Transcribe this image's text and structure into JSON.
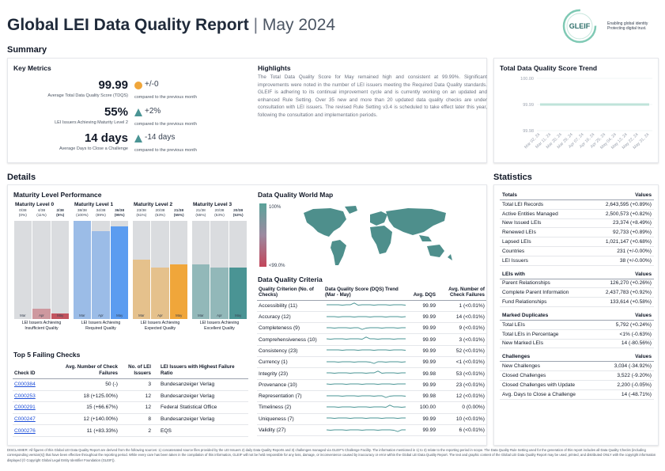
{
  "header": {
    "title": "Global LEI Data Quality Report",
    "separator": "|",
    "date": "May 2024",
    "logo_text": "GLEIF",
    "tagline_1": "Enabling global identity",
    "tagline_2": "Protecting digital trust."
  },
  "summary": {
    "title": "Summary",
    "key_metrics": {
      "title": "Key Metrics",
      "items": [
        {
          "value": "99.99",
          "label": "Average Total Data Quality Score (TDQS)",
          "change": "+/-0",
          "compare": "compared to the previous month",
          "icon": "circle-icon"
        },
        {
          "value": "55%",
          "label": "LEI Issuers Achieving Maturity Level 2",
          "change": "+2%",
          "compare": "compared to the previous month",
          "icon": "triangle-up-icon"
        },
        {
          "value": "14 days",
          "label": "Average Days to Close a Challenge",
          "change": "-14 days",
          "compare": "compared to the previous month",
          "icon": "triangle-up-icon"
        }
      ]
    },
    "highlights": {
      "title": "Highlights",
      "text": "The Total Data Quality Score for May remained high and consistent at 99.99%. Significant improvements were noted in the number of LEI issuers meeting the Required Data Quality standards. GLEIF is adhering to its continual improvement cycle and is currently working on an updated and enhanced Rule Setting. Over 35 new and more than 20 updated data quality checks are under consultation with LEI issuers. The revised Rule Setting v3.4 is scheduled to take effect later this year, following the consultation and implementation periods."
    },
    "trend": {
      "title": "Total Data Quality Score Trend"
    }
  },
  "chart_data": {
    "type": "line",
    "title": "Total Data Quality Score Trend",
    "x": [
      "Mar 02, 24",
      "Mar 11, 24",
      "Mar 20, 24",
      "Mar 29, 24",
      "Apr 07, 24",
      "Apr 16, 24",
      "Apr 25, 24",
      "May 04, 24",
      "May 13, 24",
      "May 22, 24",
      "May 31, 24"
    ],
    "series": [
      {
        "values": [
          99.99,
          99.99,
          99.99,
          99.99,
          99.99,
          99.99,
          99.99,
          99.99,
          99.99,
          99.99,
          99.99
        ]
      }
    ],
    "yticks": [
      "100.00",
      "99.99",
      "99.98"
    ],
    "ylim": [
      99.98,
      100.0
    ],
    "grid": true,
    "color": "#bfe3da"
  },
  "details": {
    "title": "Details",
    "maturity": {
      "title": "Maturity Level Performance",
      "levels": [
        {
          "title": "Maturity Level 0",
          "caption_1": "LEI Issuers Achieving",
          "caption_2": "Insufficient Quality",
          "color": "#c2545f",
          "columns": [
            {
              "count": "0/38",
              "pct": "(0%)",
              "month": "Mar",
              "value": 0,
              "bold": false
            },
            {
              "count": "4/38",
              "pct": "(11%)",
              "month": "Apr",
              "value": 0.105,
              "bold": false
            },
            {
              "count": "2/38",
              "pct": "(5%)",
              "month": "May",
              "value": 0.053,
              "bold": true
            }
          ]
        },
        {
          "title": "Maturity Level 1",
          "caption_1": "LEI Issuers Achieving",
          "caption_2": "Required Quality",
          "color": "#5b9cf0",
          "columns": [
            {
              "count": "38/38",
              "pct": "(100%)",
              "month": "Mar",
              "value": 1.0,
              "bold": false
            },
            {
              "count": "34/38",
              "pct": "(89%)",
              "month": "Apr",
              "value": 0.895,
              "bold": false
            },
            {
              "count": "36/38",
              "pct": "(95%)",
              "month": "May",
              "value": 0.947,
              "bold": true
            }
          ]
        },
        {
          "title": "Maturity Level 2",
          "caption_1": "LEI Issuers Achieving",
          "caption_2": "Expected Quality",
          "color": "#f0a63a",
          "columns": [
            {
              "count": "23/38",
              "pct": "(61%)",
              "month": "Mar",
              "value": 0.605,
              "bold": false
            },
            {
              "count": "20/38",
              "pct": "(53%)",
              "month": "Apr",
              "value": 0.526,
              "bold": false
            },
            {
              "count": "21/38",
              "pct": "(55%)",
              "month": "May",
              "value": 0.553,
              "bold": true
            }
          ]
        },
        {
          "title": "Maturity Level 3",
          "caption_1": "LEI Issuers Achieving",
          "caption_2": "Excellent Quality",
          "color": "#4a9494",
          "columns": [
            {
              "count": "21/38",
              "pct": "(55%)",
              "month": "Mar",
              "value": 0.553,
              "bold": false
            },
            {
              "count": "20/38",
              "pct": "(53%)",
              "month": "Apr",
              "value": 0.526,
              "bold": false
            },
            {
              "count": "20/38",
              "pct": "(53%)",
              "month": "May",
              "value": 0.526,
              "bold": true
            }
          ]
        }
      ]
    },
    "top5": {
      "title": "Top 5 Failing Checks",
      "headers": [
        "Check ID",
        "Avg. Number of Check Failures",
        "No. of LEI Issuers",
        "LEI Issuers with Highest Failure Ratio"
      ],
      "rows": [
        {
          "id": "C000384",
          "avg": "50 (-)",
          "issuers": "3",
          "highest": "Bundesanzeiger Verlag"
        },
        {
          "id": "C000253",
          "avg": "18 (+125.00%)",
          "issuers": "12",
          "highest": "Bundesanzeiger Verlag"
        },
        {
          "id": "C000291",
          "avg": "15 (+66.67%)",
          "issuers": "12",
          "highest": "Federal Statistical Office"
        },
        {
          "id": "C000247",
          "avg": "12 (+140.00%)",
          "issuers": "8",
          "highest": "Bundesanzeiger Verlag"
        },
        {
          "id": "C000276",
          "avg": "11 (+83.33%)",
          "issuers": "2",
          "highest": "EQS"
        }
      ]
    },
    "map": {
      "title": "Data Quality World Map",
      "legend_top": "100%",
      "legend_bottom": "<99.0%"
    },
    "criteria": {
      "title": "Data Quality Criteria",
      "headers": [
        "Quality Criterion (No. of Checks)",
        "Data Quality Score (DQS) Trend (Mar - May)",
        "Avg. DQS",
        "Avg. Number of Check Failures"
      ],
      "rows": [
        {
          "name": "Accessibility (11)",
          "dqs": "99.99",
          "fail": "1 (<0.01%)"
        },
        {
          "name": "Accuracy (12)",
          "dqs": "99.99",
          "fail": "14 (<0.01%)"
        },
        {
          "name": "Completeness (9)",
          "dqs": "99.99",
          "fail": "9 (<0.01%)"
        },
        {
          "name": "Comprehensiveness (10)",
          "dqs": "99.99",
          "fail": "3 (<0.01%)"
        },
        {
          "name": "Consistency (23)",
          "dqs": "99.99",
          "fail": "52 (<0.01%)"
        },
        {
          "name": "Currency (1)",
          "dqs": "99.99",
          "fail": "<1 (<0.01%)"
        },
        {
          "name": "Integrity (23)",
          "dqs": "99.98",
          "fail": "53 (<0.01%)"
        },
        {
          "name": "Provenance (10)",
          "dqs": "99.99",
          "fail": "23 (<0.01%)"
        },
        {
          "name": "Representation (7)",
          "dqs": "99.98",
          "fail": "12 (<0.01%)"
        },
        {
          "name": "Timeliness (2)",
          "dqs": "100.00",
          "fail": "0 (0.00%)"
        },
        {
          "name": "Uniqueness (7)",
          "dqs": "99.99",
          "fail": "10 (<0.01%)"
        },
        {
          "name": "Validity (27)",
          "dqs": "99.99",
          "fail": "6 (<0.01%)"
        }
      ]
    }
  },
  "statistics": {
    "title": "Statistics",
    "groups": [
      {
        "header": "Totals",
        "values_header": "Values",
        "rows": [
          {
            "label": "Total LEI Records",
            "value": "2,643,595 (+0.89%)"
          },
          {
            "label": "Active Entities Managed",
            "value": "2,500,573 (+0.82%)"
          },
          {
            "label": "New Issued LEIs",
            "value": "23,374 (+8.49%)"
          },
          {
            "label": "Renewed LEIs",
            "value": "92,733 (+0.89%)"
          },
          {
            "label": "Lapsed LEIs",
            "value": "1,021,147 (+0.68%)"
          },
          {
            "label": "Countries",
            "value": "231 (+/-0.00%)"
          },
          {
            "label": "LEI Issuers",
            "value": "38 (+/-0.00%)"
          }
        ]
      },
      {
        "header": "LEIs with",
        "values_header": "Values",
        "rows": [
          {
            "label": "Parent Relationships",
            "value": "126,270 (+0.26%)"
          },
          {
            "label": "Complete Parent Information",
            "value": "2,437,783 (+0.92%)"
          },
          {
            "label": "Fund Relationships",
            "value": "133,614 (+0.58%)"
          }
        ]
      },
      {
        "header": "Marked Duplicates",
        "values_header": "Values",
        "rows": [
          {
            "label": "Total LEIs",
            "value": "5,792 (+0.24%)"
          },
          {
            "label": "Total LEIs in Percentage",
            "value": "<1% (-0.63%)"
          },
          {
            "label": "New Marked LEIs",
            "value": "14 (-80.56%)"
          }
        ]
      },
      {
        "header": "Challenges",
        "values_header": "Values",
        "rows": [
          {
            "label": "New Challenges",
            "value": "3,034 (-34.92%)"
          },
          {
            "label": "Closed Challenges",
            "value": "3,522 (-9.20%)"
          },
          {
            "label": "Closed Challenges with Update",
            "value": "2,200 (-0.05%)"
          },
          {
            "label": "Avg. Days to Close a Challenge",
            "value": "14 (-48.71%)"
          }
        ]
      }
    ]
  },
  "disclaimer": "DISCLAIMER: All figures of this Global LEI Data Quality Report are derived from the following sources: 1) concatenated source files provided by the LEI Issuers 2) daily Data Quality Reports and 3) challenges managed via GLEIF's Challenge Facility. The information mentioned in 1) to 3) relate to the reporting period in scope. The Data Quality Rule Setting used for the generation of this report includes all Data Quality Checks (including corresponding version(s)) that have been effective throughout the reporting period. While every care has been taken in the compilation of this information, GLEIF will not be held responsible for any loss, damage, or inconvenience caused by inaccuracy or error within the Global LEI Data Quality Report. The text and graphic content of the Global LEI Data Quality Report may be used, printed, and distributed ONLY with the copyright information displayed (© Copyright Global Legal Entity Identifier Foundation (GLEIF))."
}
